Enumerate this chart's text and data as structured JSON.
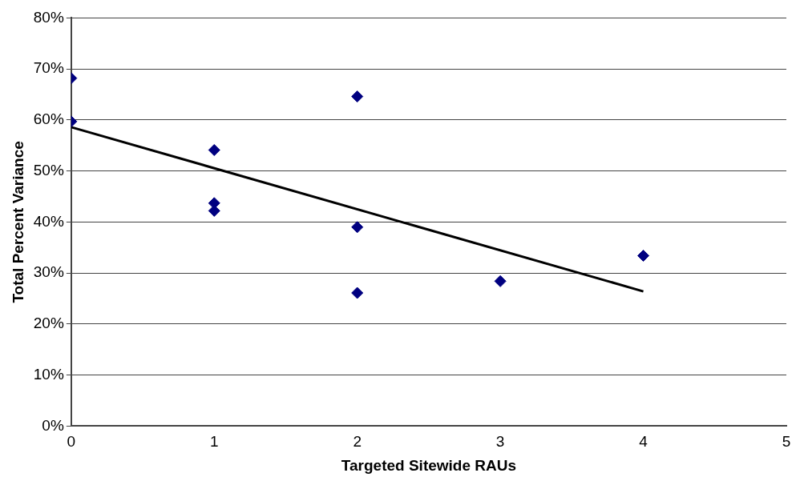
{
  "chart_data": {
    "type": "scatter",
    "xlabel": "Targeted Sitewide RAUs",
    "ylabel": "Total Percent Variance",
    "series": [
      {
        "type": "scatter",
        "color": "#000080",
        "marker": "diamond",
        "x": [
          0,
          0,
          1,
          1,
          1,
          2,
          2,
          2,
          3,
          4
        ],
        "values": [
          68.2,
          59.7,
          54.1,
          43.7,
          42.2,
          64.6,
          39,
          26.1,
          28.4,
          33.4
        ]
      },
      {
        "type": "line",
        "color": "#000000",
        "marker": "none",
        "x": [
          0,
          4
        ],
        "values": [
          58.6,
          26.4
        ]
      }
    ],
    "xlim": [
      0,
      5
    ],
    "xticks": [
      0,
      1,
      2,
      3,
      4,
      5
    ],
    "ylim": [
      0,
      80
    ],
    "yticks": [
      {
        "value": 0,
        "label": "0%"
      },
      {
        "value": 10,
        "label": "10%"
      },
      {
        "value": 20,
        "label": "20%"
      },
      {
        "value": 30,
        "label": "30%"
      },
      {
        "value": 40,
        "label": "40%"
      },
      {
        "value": 50,
        "label": "50%"
      },
      {
        "value": 60,
        "label": "60%"
      },
      {
        "value": 70,
        "label": "70%"
      },
      {
        "value": 80,
        "label": "80%"
      }
    ],
    "grid": "y",
    "legend": false
  }
}
